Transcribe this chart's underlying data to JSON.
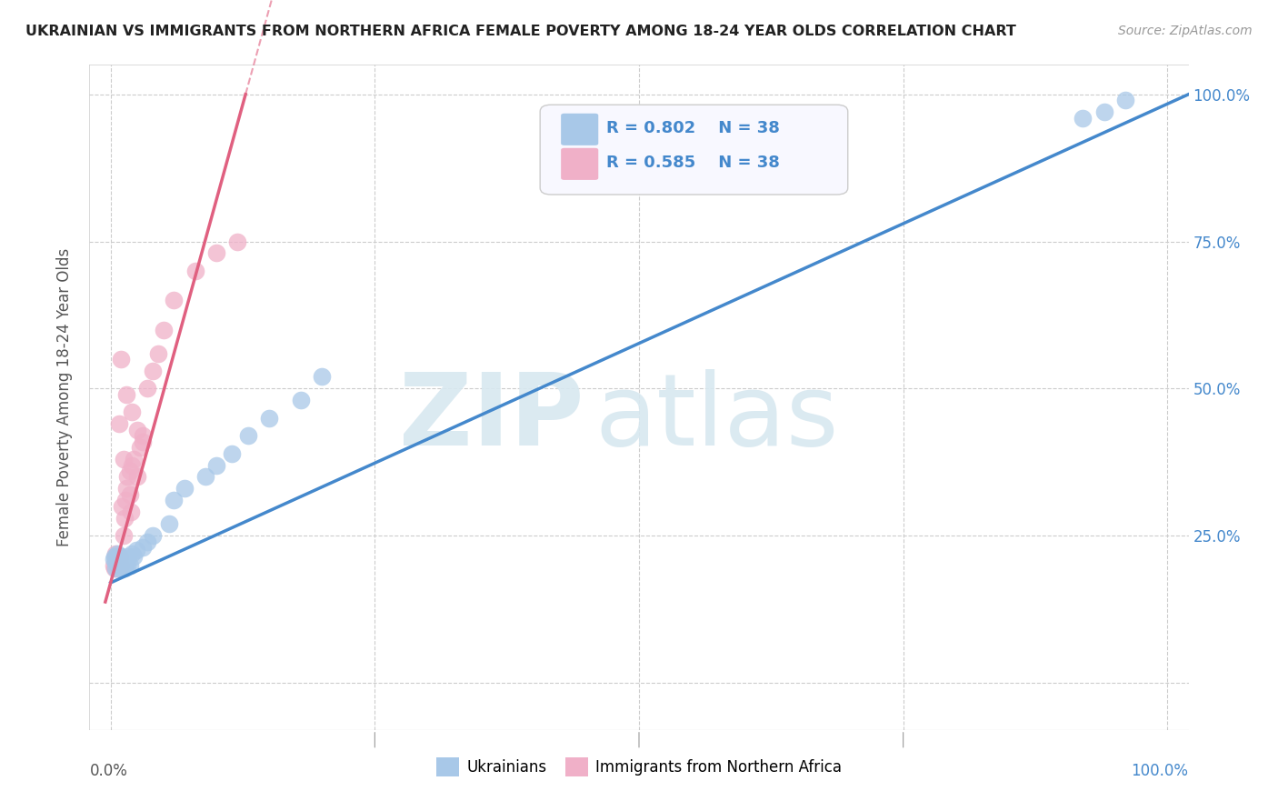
{
  "title": "UKRAINIAN VS IMMIGRANTS FROM NORTHERN AFRICA FEMALE POVERTY AMONG 18-24 YEAR OLDS CORRELATION CHART",
  "source": "Source: ZipAtlas.com",
  "ylabel": "Female Poverty Among 18-24 Year Olds",
  "xlim": [
    -0.02,
    1.02
  ],
  "ylim": [
    -0.08,
    1.05
  ],
  "xticks": [
    0.0,
    0.25,
    0.5,
    0.75,
    1.0
  ],
  "yticks": [
    0.0,
    0.25,
    0.5,
    0.75,
    1.0
  ],
  "xticklabels_bottom": [
    "0.0%",
    "",
    "",
    "",
    "100.0%"
  ],
  "yticklabels_right": [
    "",
    "25.0%",
    "50.0%",
    "75.0%",
    "100.0%"
  ],
  "blue_R": "0.802",
  "blue_N": "38",
  "pink_R": "0.585",
  "pink_N": "38",
  "blue_label": "Ukrainians",
  "pink_label": "Immigrants from Northern Africa",
  "watermark_zip": "ZIP",
  "watermark_atlas": "atlas",
  "blue_color": "#a8c8e8",
  "pink_color": "#f0b0c8",
  "blue_line_color": "#4488cc",
  "pink_line_color": "#e06080",
  "background_color": "#ffffff",
  "grid_color": "#cccccc",
  "title_color": "#222222",
  "ylabel_color": "#555555",
  "tick_color": "#555555",
  "right_tick_color": "#4488cc",
  "legend_border_color": "#cccccc",
  "legend_text_color": "#4488cc",
  "blue_scatter_x": [
    0.003,
    0.004,
    0.005,
    0.005,
    0.006,
    0.007,
    0.007,
    0.008,
    0.009,
    0.01,
    0.01,
    0.011,
    0.012,
    0.013,
    0.014,
    0.015,
    0.016,
    0.017,
    0.018,
    0.02,
    0.022,
    0.024,
    0.03,
    0.035,
    0.04,
    0.055,
    0.06,
    0.07,
    0.09,
    0.1,
    0.115,
    0.13,
    0.15,
    0.18,
    0.2,
    0.92,
    0.94,
    0.96
  ],
  "blue_scatter_y": [
    0.21,
    0.215,
    0.195,
    0.205,
    0.22,
    0.2,
    0.215,
    0.21,
    0.205,
    0.215,
    0.195,
    0.2,
    0.205,
    0.195,
    0.2,
    0.21,
    0.2,
    0.215,
    0.2,
    0.22,
    0.215,
    0.225,
    0.23,
    0.24,
    0.25,
    0.27,
    0.31,
    0.33,
    0.35,
    0.37,
    0.39,
    0.42,
    0.45,
    0.48,
    0.52,
    0.96,
    0.97,
    0.99
  ],
  "pink_scatter_x": [
    0.003,
    0.004,
    0.005,
    0.005,
    0.006,
    0.007,
    0.008,
    0.009,
    0.01,
    0.011,
    0.012,
    0.013,
    0.014,
    0.015,
    0.016,
    0.018,
    0.019,
    0.02,
    0.022,
    0.025,
    0.028,
    0.03,
    0.035,
    0.04,
    0.045,
    0.05,
    0.06,
    0.08,
    0.1,
    0.12,
    0.01,
    0.015,
    0.02,
    0.025,
    0.03,
    0.008,
    0.012,
    0.018
  ],
  "pink_scatter_y": [
    0.2,
    0.195,
    0.22,
    0.215,
    0.195,
    0.205,
    0.21,
    0.215,
    0.2,
    0.3,
    0.25,
    0.28,
    0.31,
    0.33,
    0.35,
    0.32,
    0.29,
    0.37,
    0.38,
    0.35,
    0.4,
    0.42,
    0.5,
    0.53,
    0.56,
    0.6,
    0.65,
    0.7,
    0.73,
    0.75,
    0.55,
    0.49,
    0.46,
    0.43,
    0.41,
    0.44,
    0.38,
    0.36
  ],
  "blue_line_x0": 0.0,
  "blue_line_y0": 0.17,
  "blue_line_x1": 1.02,
  "blue_line_y1": 1.0,
  "pink_line_x0": 0.0,
  "pink_line_y0": 0.17,
  "pink_line_slope": 6.5
}
